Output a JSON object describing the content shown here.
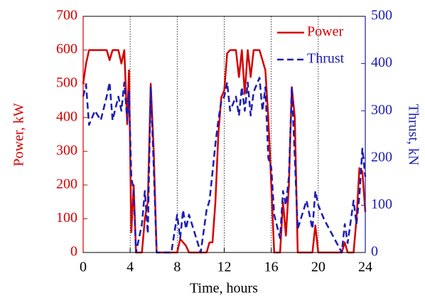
{
  "chart_data": {
    "type": "line",
    "xlabel": "Time, hours",
    "ylabel": "Power, kW",
    "y2label": "Thrust, kN",
    "x": [
      0,
      0.25,
      0.5,
      1,
      1.5,
      2,
      2.25,
      2.5,
      3,
      3.25,
      3.5,
      3.75,
      3.9,
      4.1,
      4.3,
      4.5,
      5,
      5.25,
      5.5,
      5.75,
      6,
      6.25,
      7,
      7.5,
      8,
      8.25,
      8.5,
      8.75,
      9,
      10,
      10.5,
      10.75,
      11,
      11.25,
      11.5,
      11.75,
      12,
      12.25,
      12.5,
      13,
      13.25,
      13.5,
      13.75,
      14,
      14.25,
      14.5,
      15,
      15.25,
      15.5,
      15.75,
      16,
      16.25,
      16.75,
      17,
      17.25,
      17.5,
      17.75,
      18,
      18.25,
      19,
      19.5,
      19.75,
      20,
      20.5,
      22,
      22.25,
      22.5,
      23,
      23.25,
      23.5,
      23.75,
      24
    ],
    "series": [
      {
        "name": "Power",
        "color": "#d40000",
        "dash": false,
        "values": [
          500,
          560,
          600,
          600,
          600,
          600,
          570,
          600,
          600,
          560,
          600,
          380,
          540,
          60,
          200,
          0,
          0,
          100,
          150,
          500,
          300,
          0,
          0,
          0,
          0,
          40,
          30,
          20,
          0,
          0,
          0,
          30,
          30,
          150,
          350,
          460,
          480,
          590,
          600,
          600,
          520,
          600,
          470,
          600,
          520,
          600,
          600,
          570,
          540,
          400,
          200,
          0,
          0,
          150,
          50,
          200,
          490,
          400,
          0,
          0,
          0,
          80,
          0,
          0,
          0,
          30,
          0,
          0,
          100,
          250,
          240,
          120
        ]
      },
      {
        "name": "Thrust",
        "color": "#1c1cb4",
        "dash": true,
        "axis": "y2",
        "values": [
          330,
          355,
          270,
          300,
          280,
          330,
          360,
          280,
          330,
          300,
          360,
          280,
          340,
          160,
          130,
          0,
          60,
          130,
          40,
          350,
          180,
          0,
          0,
          0,
          80,
          30,
          90,
          50,
          80,
          0,
          90,
          110,
          170,
          230,
          280,
          320,
          330,
          360,
          300,
          330,
          290,
          350,
          300,
          360,
          290,
          340,
          370,
          300,
          350,
          200,
          180,
          80,
          30,
          130,
          100,
          160,
          350,
          200,
          50,
          110,
          50,
          130,
          100,
          70,
          0,
          60,
          20,
          110,
          60,
          120,
          220,
          160
        ]
      }
    ],
    "xlim": [
      0,
      24
    ],
    "xticks": [
      0,
      4,
      8,
      12,
      16,
      20,
      24
    ],
    "ylim": [
      0,
      700
    ],
    "yticks": [
      0,
      100,
      200,
      300,
      400,
      500,
      600,
      700
    ],
    "y2lim": [
      0,
      500
    ],
    "y2ticks": [
      0,
      100,
      200,
      300,
      400,
      500
    ],
    "xgrid": true,
    "legend": "upper right"
  }
}
